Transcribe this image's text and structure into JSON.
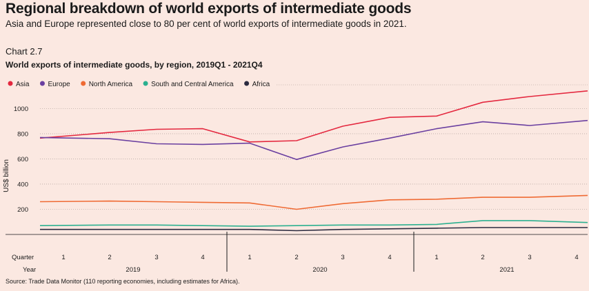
{
  "headline": "Regional breakdown of world exports of intermediate goods",
  "subheadline": "Asia and Europe represented close to 80 per cent of world exports of intermediate goods in 2021.",
  "chart_label": "Chart 2.7",
  "source": "Source: Trade Data Monitor (110 reporting economies, including estimates for Africa).",
  "chart_data": {
    "type": "line",
    "title": "World exports of intermediate goods, by region, 2019Q1 - 2021Q4",
    "ylabel": "US$ billion",
    "ylim": [
      0,
      1150
    ],
    "yticks": [
      200,
      400,
      600,
      800,
      1000
    ],
    "grid": true,
    "legend_position": "top",
    "x_row_labels": {
      "quarter": "Quarter",
      "year": "Year"
    },
    "categories": [
      "1",
      "2",
      "3",
      "4",
      "1",
      "2",
      "3",
      "4",
      "1",
      "2",
      "3",
      "4"
    ],
    "years": [
      "2019",
      "2020",
      "2021"
    ],
    "series": [
      {
        "name": "Asia",
        "color": "#e4283f",
        "values": [
          765,
          810,
          835,
          840,
          735,
          745,
          860,
          930,
          940,
          1050,
          1095,
          1140
        ]
      },
      {
        "name": "Europe",
        "color": "#6a3fa0",
        "values": [
          770,
          760,
          720,
          715,
          725,
          595,
          695,
          765,
          840,
          895,
          865,
          905
        ]
      },
      {
        "name": "North America",
        "color": "#ef6a33",
        "values": [
          260,
          265,
          260,
          255,
          250,
          200,
          245,
          275,
          280,
          295,
          295,
          310
        ]
      },
      {
        "name": "South and Central America",
        "color": "#2bb08f",
        "values": [
          70,
          75,
          75,
          70,
          65,
          70,
          75,
          75,
          80,
          110,
          110,
          95
        ]
      },
      {
        "name": "Africa",
        "color": "#2b2a3f",
        "values": [
          40,
          40,
          40,
          40,
          40,
          30,
          40,
          45,
          50,
          55,
          55,
          55
        ]
      }
    ]
  }
}
